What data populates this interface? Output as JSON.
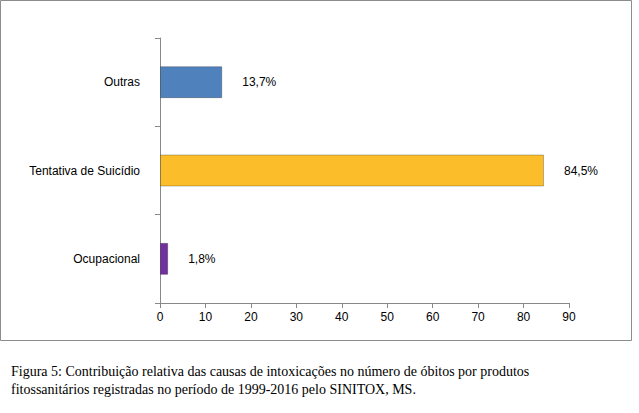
{
  "chart_data": {
    "type": "bar",
    "orientation": "horizontal",
    "title": "Figura 5: Contribuição relativa das causas de intoxicações no número de óbitos por produtos fitossanitários registradas no período de 1999-2016 pelo SINITOX, MS.",
    "categories": [
      "Ocupacional",
      "Tentativa de Suicídio",
      "Outras"
    ],
    "values": [
      1.8,
      84.5,
      13.7
    ],
    "value_labels": [
      "1,8%",
      "84,5%",
      "13,7%"
    ],
    "colors": [
      "#7030a0",
      "#fbbe2a",
      "#4f81bd"
    ],
    "xlim": [
      0,
      90
    ],
    "xticks": [
      0,
      10,
      20,
      30,
      40,
      50,
      60,
      70,
      80,
      90
    ],
    "grid": false,
    "data_labels": true
  }
}
